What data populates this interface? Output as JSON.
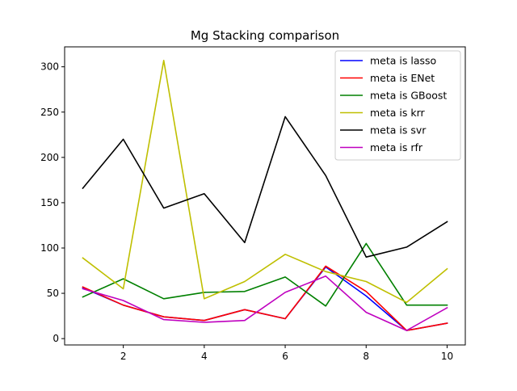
{
  "chart_data": {
    "type": "line",
    "title": "Mg Stacking comparison",
    "xlabel": "",
    "ylabel": "",
    "xlim": [
      0.55,
      10.45
    ],
    "ylim": [
      -7,
      322
    ],
    "x": [
      1,
      2,
      3,
      4,
      5,
      6,
      7,
      8,
      9,
      10
    ],
    "xticks": [
      2,
      4,
      6,
      8,
      10
    ],
    "yticks": [
      0,
      50,
      100,
      150,
      200,
      250,
      300
    ],
    "grid": false,
    "legend_position": "upper right",
    "series": [
      {
        "name": "meta is lasso",
        "color": "#0000ff",
        "values": [
          56,
          37,
          24,
          20,
          32,
          22,
          79,
          47,
          9,
          17
        ]
      },
      {
        "name": "meta is ENet",
        "color": "#ff0000",
        "values": [
          57,
          37,
          24,
          20,
          32,
          22,
          80,
          52,
          9,
          17
        ]
      },
      {
        "name": "meta is GBoost",
        "color": "#008000",
        "values": [
          46,
          66,
          44,
          51,
          52,
          68,
          36,
          105,
          37,
          37
        ]
      },
      {
        "name": "meta is krr",
        "color": "#bfbf00",
        "values": [
          89,
          55,
          307,
          44,
          63,
          93,
          74,
          63,
          40,
          77
        ]
      },
      {
        "name": "meta is svr",
        "color": "#000000",
        "values": [
          166,
          220,
          144,
          160,
          106,
          245,
          180,
          90,
          101,
          129
        ]
      },
      {
        "name": "meta is rfr",
        "color": "#bf00bf",
        "values": [
          55,
          42,
          21,
          18,
          20,
          51,
          69,
          29,
          9,
          34
        ]
      }
    ]
  }
}
